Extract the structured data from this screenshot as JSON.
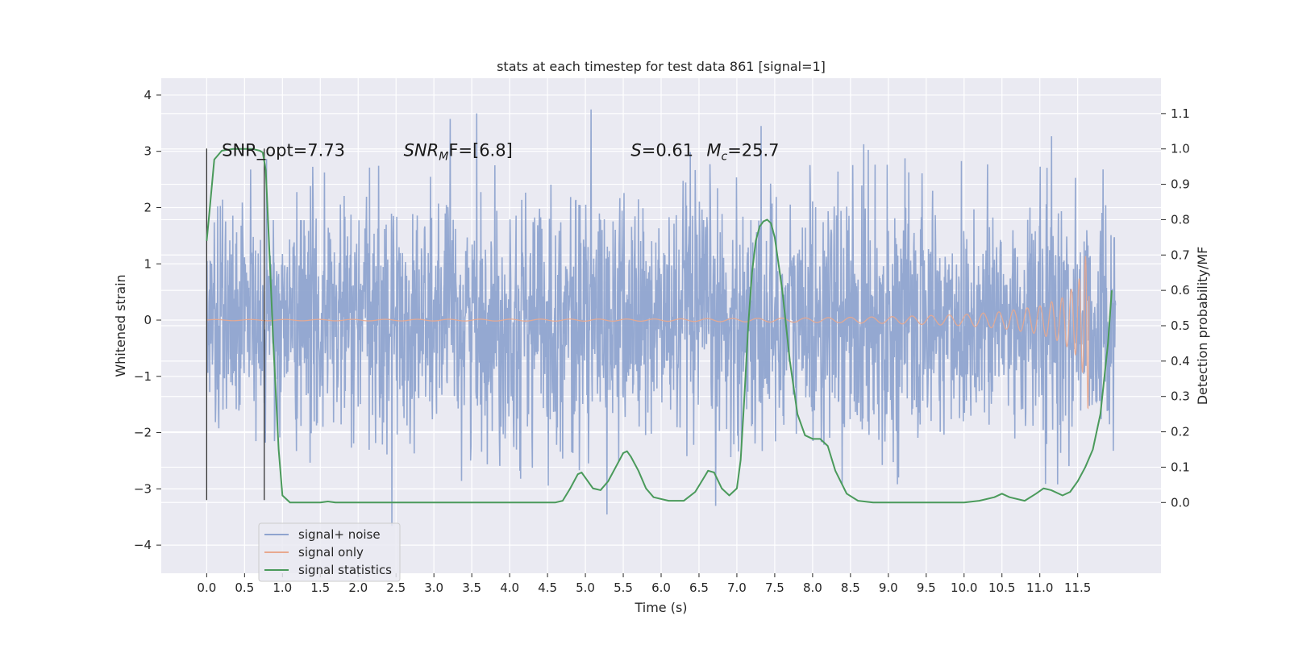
{
  "chart_data": {
    "type": "line",
    "title": "stats at each timestep for test data 861 [signal=1]",
    "xlabel": "Time (s)",
    "ylabel_left": "Whitened strain",
    "ylabel_right": "Detection probability/MF",
    "xlim": [
      -0.6,
      12.6
    ],
    "ylim_left": [
      -4.5,
      4.3
    ],
    "ylim_right": [
      -0.2,
      1.2
    ],
    "x_ticks": [
      0.0,
      0.5,
      1.0,
      1.5,
      2.0,
      2.5,
      3.0,
      3.5,
      4.0,
      4.5,
      5.0,
      5.5,
      6.0,
      6.5,
      7.0,
      7.5,
      8.0,
      8.5,
      9.0,
      9.5,
      10.0,
      10.5,
      11.0,
      11.5
    ],
    "x_tick_labels": [
      "0.0",
      "0.5",
      "1.0",
      "1.5",
      "2.0",
      "2.5",
      "3.0",
      "3.5",
      "4.0",
      "4.5",
      "5.0",
      "5.5",
      "6.0",
      "6.5",
      "7.0",
      "7.5",
      "8.0",
      "8.5",
      "9.0",
      "9.5",
      "10.0",
      "10.5",
      "11.0",
      "11.5"
    ],
    "y_left_ticks": [
      -4,
      -3,
      -2,
      -1,
      0,
      1,
      2,
      3,
      4
    ],
    "y_left_tick_labels": [
      "−4",
      "−3",
      "−2",
      "−1",
      "0",
      "1",
      "2",
      "3",
      "4"
    ],
    "y_right_ticks": [
      0.0,
      0.1,
      0.2,
      0.3,
      0.4,
      0.5,
      0.6,
      0.7,
      0.8,
      0.9,
      1.0,
      1.1
    ],
    "y_right_tick_labels": [
      "0.0",
      "0.1",
      "0.2",
      "0.3",
      "0.4",
      "0.5",
      "0.6",
      "0.7",
      "0.8",
      "0.9",
      "1.0",
      "1.1"
    ],
    "grid": true,
    "legend_position": "lower-left",
    "series": [
      {
        "name": "signal+ noise",
        "axis": "left",
        "color": "#8fa4cf",
        "time_range": [
          0.0,
          12.0
        ],
        "typical_band": [
          -2.0,
          2.0
        ],
        "max": 3.9,
        "min": -4.1
      },
      {
        "name": "signal only",
        "axis": "left",
        "color": "#e8a98f",
        "time_range": [
          0.0,
          11.65
        ],
        "envelope": [
          [
            0.0,
            0.01
          ],
          [
            6.0,
            0.02
          ],
          [
            8.0,
            0.04
          ],
          [
            9.0,
            0.06
          ],
          [
            10.0,
            0.1
          ],
          [
            10.5,
            0.15
          ],
          [
            11.0,
            0.25
          ],
          [
            11.3,
            0.4
          ],
          [
            11.5,
            0.65
          ],
          [
            11.6,
            1.1
          ],
          [
            11.65,
            1.8
          ]
        ]
      },
      {
        "name": "signal statistics",
        "axis": "right",
        "color": "#4a9a5b",
        "x": [
          0.0,
          0.04,
          0.1,
          0.2,
          0.35,
          0.5,
          0.6,
          0.7,
          0.74,
          0.78,
          0.82,
          0.88,
          0.95,
          1.0,
          1.1,
          1.5,
          1.6,
          1.7,
          2.0,
          3.0,
          4.0,
          4.4,
          4.6,
          4.7,
          4.8,
          4.9,
          4.95,
          5.0,
          5.1,
          5.2,
          5.3,
          5.4,
          5.5,
          5.55,
          5.6,
          5.7,
          5.8,
          5.9,
          6.1,
          6.3,
          6.45,
          6.55,
          6.62,
          6.7,
          6.8,
          6.9,
          7.0,
          7.05,
          7.1,
          7.15,
          7.2,
          7.25,
          7.3,
          7.35,
          7.4,
          7.45,
          7.5,
          7.6,
          7.7,
          7.8,
          7.9,
          8.0,
          8.1,
          8.2,
          8.3,
          8.45,
          8.6,
          8.8,
          9.5,
          10.0,
          10.2,
          10.4,
          10.5,
          10.6,
          10.8,
          10.95,
          11.05,
          11.15,
          11.3,
          11.4,
          11.5,
          11.6,
          11.7,
          11.8,
          11.9,
          11.95
        ],
        "y": [
          0.74,
          0.83,
          0.97,
          0.995,
          1.0,
          1.0,
          1.0,
          0.995,
          0.99,
          0.94,
          0.75,
          0.45,
          0.15,
          0.02,
          0.0,
          0.0,
          0.003,
          0.0,
          0.0,
          0.0,
          0.0,
          0.0,
          0.0,
          0.005,
          0.04,
          0.08,
          0.085,
          0.07,
          0.04,
          0.035,
          0.06,
          0.1,
          0.14,
          0.145,
          0.13,
          0.09,
          0.04,
          0.015,
          0.005,
          0.005,
          0.03,
          0.065,
          0.09,
          0.085,
          0.04,
          0.02,
          0.04,
          0.12,
          0.3,
          0.5,
          0.65,
          0.74,
          0.78,
          0.795,
          0.8,
          0.79,
          0.75,
          0.6,
          0.4,
          0.25,
          0.19,
          0.18,
          0.18,
          0.16,
          0.09,
          0.025,
          0.005,
          0.0,
          0.0,
          0.0,
          0.005,
          0.015,
          0.025,
          0.015,
          0.005,
          0.025,
          0.04,
          0.035,
          0.02,
          0.03,
          0.06,
          0.1,
          0.15,
          0.25,
          0.45,
          0.6
        ]
      }
    ],
    "vertical_lines": [
      0.0,
      0.76
    ],
    "annotations": [
      {
        "x": 0.2,
        "y": 3.0,
        "text": "SNR_opt=7.73",
        "mathtext": false
      },
      {
        "x": 2.6,
        "y": 3.0,
        "text": "SNR",
        "sub": "M",
        "rest": "F=[6.8]",
        "mathtext": true
      },
      {
        "x": 5.6,
        "y": 3.0,
        "text": "S",
        "rest": "=0.61",
        "mathtext": true
      },
      {
        "x": 6.6,
        "y": 3.0,
        "text": "M",
        "sub": "c",
        "rest": "=25.7",
        "mathtext": true
      }
    ]
  }
}
